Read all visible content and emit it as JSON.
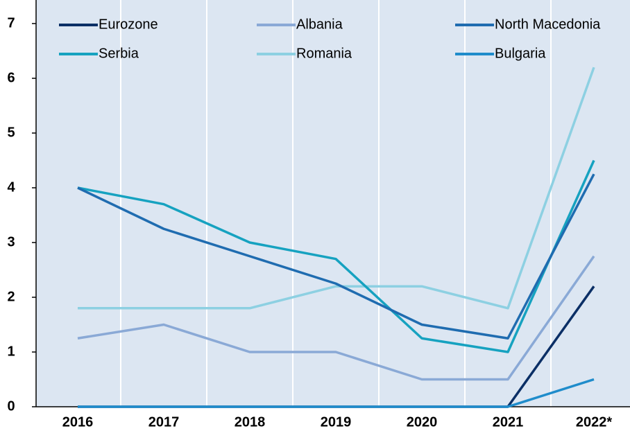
{
  "chart_data": {
    "type": "line",
    "categories": [
      "2016",
      "2017",
      "2018",
      "2019",
      "2020",
      "2021",
      "2022*"
    ],
    "series": [
      {
        "name": "Eurozone",
        "color": "#0b2f66",
        "values": [
          0,
          0,
          0,
          0,
          0,
          0,
          2.2
        ]
      },
      {
        "name": "Albania",
        "color": "#8aa9d6",
        "values": [
          1.25,
          1.5,
          1.0,
          1.0,
          0.5,
          0.5,
          2.75
        ]
      },
      {
        "name": "North Macedonia",
        "color": "#1f6cb0",
        "values": [
          4.0,
          3.25,
          2.75,
          2.25,
          1.5,
          1.25,
          4.25
        ]
      },
      {
        "name": "Serbia",
        "color": "#16a2c0",
        "values": [
          4.0,
          3.7,
          3.0,
          2.7,
          1.25,
          1.0,
          4.5
        ]
      },
      {
        "name": "Romania",
        "color": "#8dd0e2",
        "values": [
          1.8,
          1.8,
          1.8,
          2.2,
          2.2,
          1.8,
          6.2
        ]
      },
      {
        "name": "Bulgaria",
        "color": "#1f8ccb",
        "values": [
          0,
          0,
          0,
          0,
          0,
          0,
          0.5
        ]
      }
    ],
    "ylim": [
      0,
      7
    ],
    "yticks": [
      0,
      1,
      2,
      3,
      4,
      5,
      6,
      7
    ],
    "grid": true,
    "legend": "top"
  }
}
